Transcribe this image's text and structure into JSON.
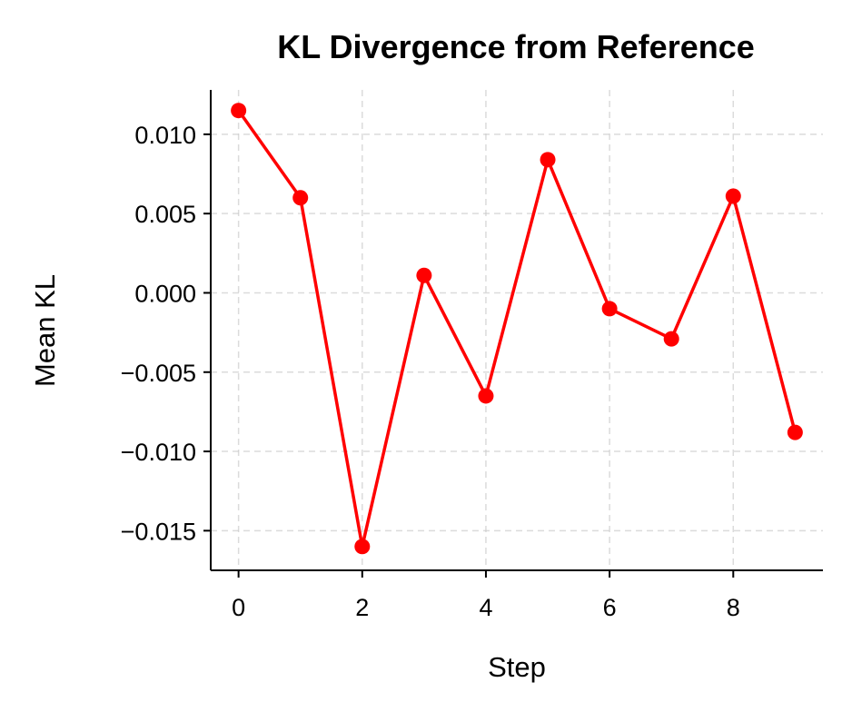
{
  "chart_data": {
    "type": "line",
    "title": "KL Divergence from Reference",
    "xlabel": "Step",
    "ylabel": "Mean KL",
    "x": [
      0,
      1,
      2,
      3,
      4,
      5,
      6,
      7,
      8,
      9
    ],
    "series": [
      {
        "values": [
          0.0115,
          0.006,
          -0.016,
          0.0011,
          -0.0065,
          0.0084,
          -0.001,
          -0.0029,
          0.0061,
          -0.0088
        ],
        "color": "#ff0000",
        "marker": "circle"
      }
    ],
    "xticks": [
      0,
      2,
      4,
      6,
      8
    ],
    "xtick_labels": [
      "0",
      "2",
      "4",
      "6",
      "8"
    ],
    "yticks": [
      -0.015,
      -0.01,
      -0.005,
      0.0,
      0.005,
      0.01
    ],
    "ytick_labels": [
      "−0.015",
      "−0.010",
      "−0.005",
      "0.000",
      "0.005",
      "0.010"
    ],
    "xlim": [
      -0.45,
      9.45
    ],
    "ylim": [
      -0.0175,
      0.0128
    ],
    "grid": true,
    "legend": "none"
  }
}
